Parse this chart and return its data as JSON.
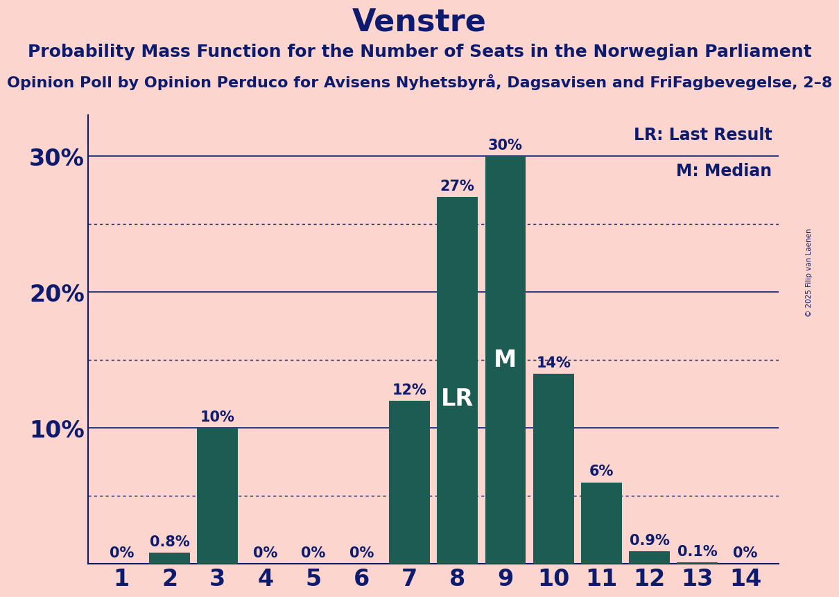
{
  "title": "Venstre",
  "subtitle": "Probability Mass Function for the Number of Seats in the Norwegian Parliament",
  "subsubtitle": "Opinion Poll by Opinion Perduco for Avisens Nyhetsbyrå, Dagsavisen and FriFagbevegelse, 2–8",
  "copyright": "© 2025 Filip van Laenen",
  "seats": [
    1,
    2,
    3,
    4,
    5,
    6,
    7,
    8,
    9,
    10,
    11,
    12,
    13,
    14
  ],
  "probabilities": [
    0.0,
    0.8,
    10.0,
    0.0,
    0.0,
    0.0,
    12.0,
    27.0,
    30.0,
    14.0,
    6.0,
    0.9,
    0.1,
    0.0
  ],
  "labels": [
    "0%",
    "0.8%",
    "10%",
    "0%",
    "0%",
    "0%",
    "12%",
    "27%",
    "30%",
    "14%",
    "6%",
    "0.9%",
    "0.1%",
    "0%"
  ],
  "bar_color": "#1d5c52",
  "background_color": "#fcd5ce",
  "text_color": "#0d1b6e",
  "lr_seat": 8,
  "median_seat": 9,
  "lr_label": "LR",
  "median_label": "M",
  "legend_lr": "LR: Last Result",
  "legend_m": "M: Median",
  "ylim": [
    0,
    33
  ],
  "yticks": [
    0,
    10,
    20,
    30
  ],
  "ytick_labels": [
    "",
    "10%",
    "20%",
    "30%"
  ],
  "solid_lines": [
    10,
    20,
    30
  ],
  "dotted_lines": [
    5,
    15,
    25
  ],
  "title_fontsize": 32,
  "subtitle_fontsize": 18,
  "subsubtitle_fontsize": 16,
  "bar_label_fontsize": 15,
  "legend_fontsize": 17,
  "ytick_fontsize": 24,
  "xtick_fontsize": 24,
  "lr_m_fontsize": 24
}
